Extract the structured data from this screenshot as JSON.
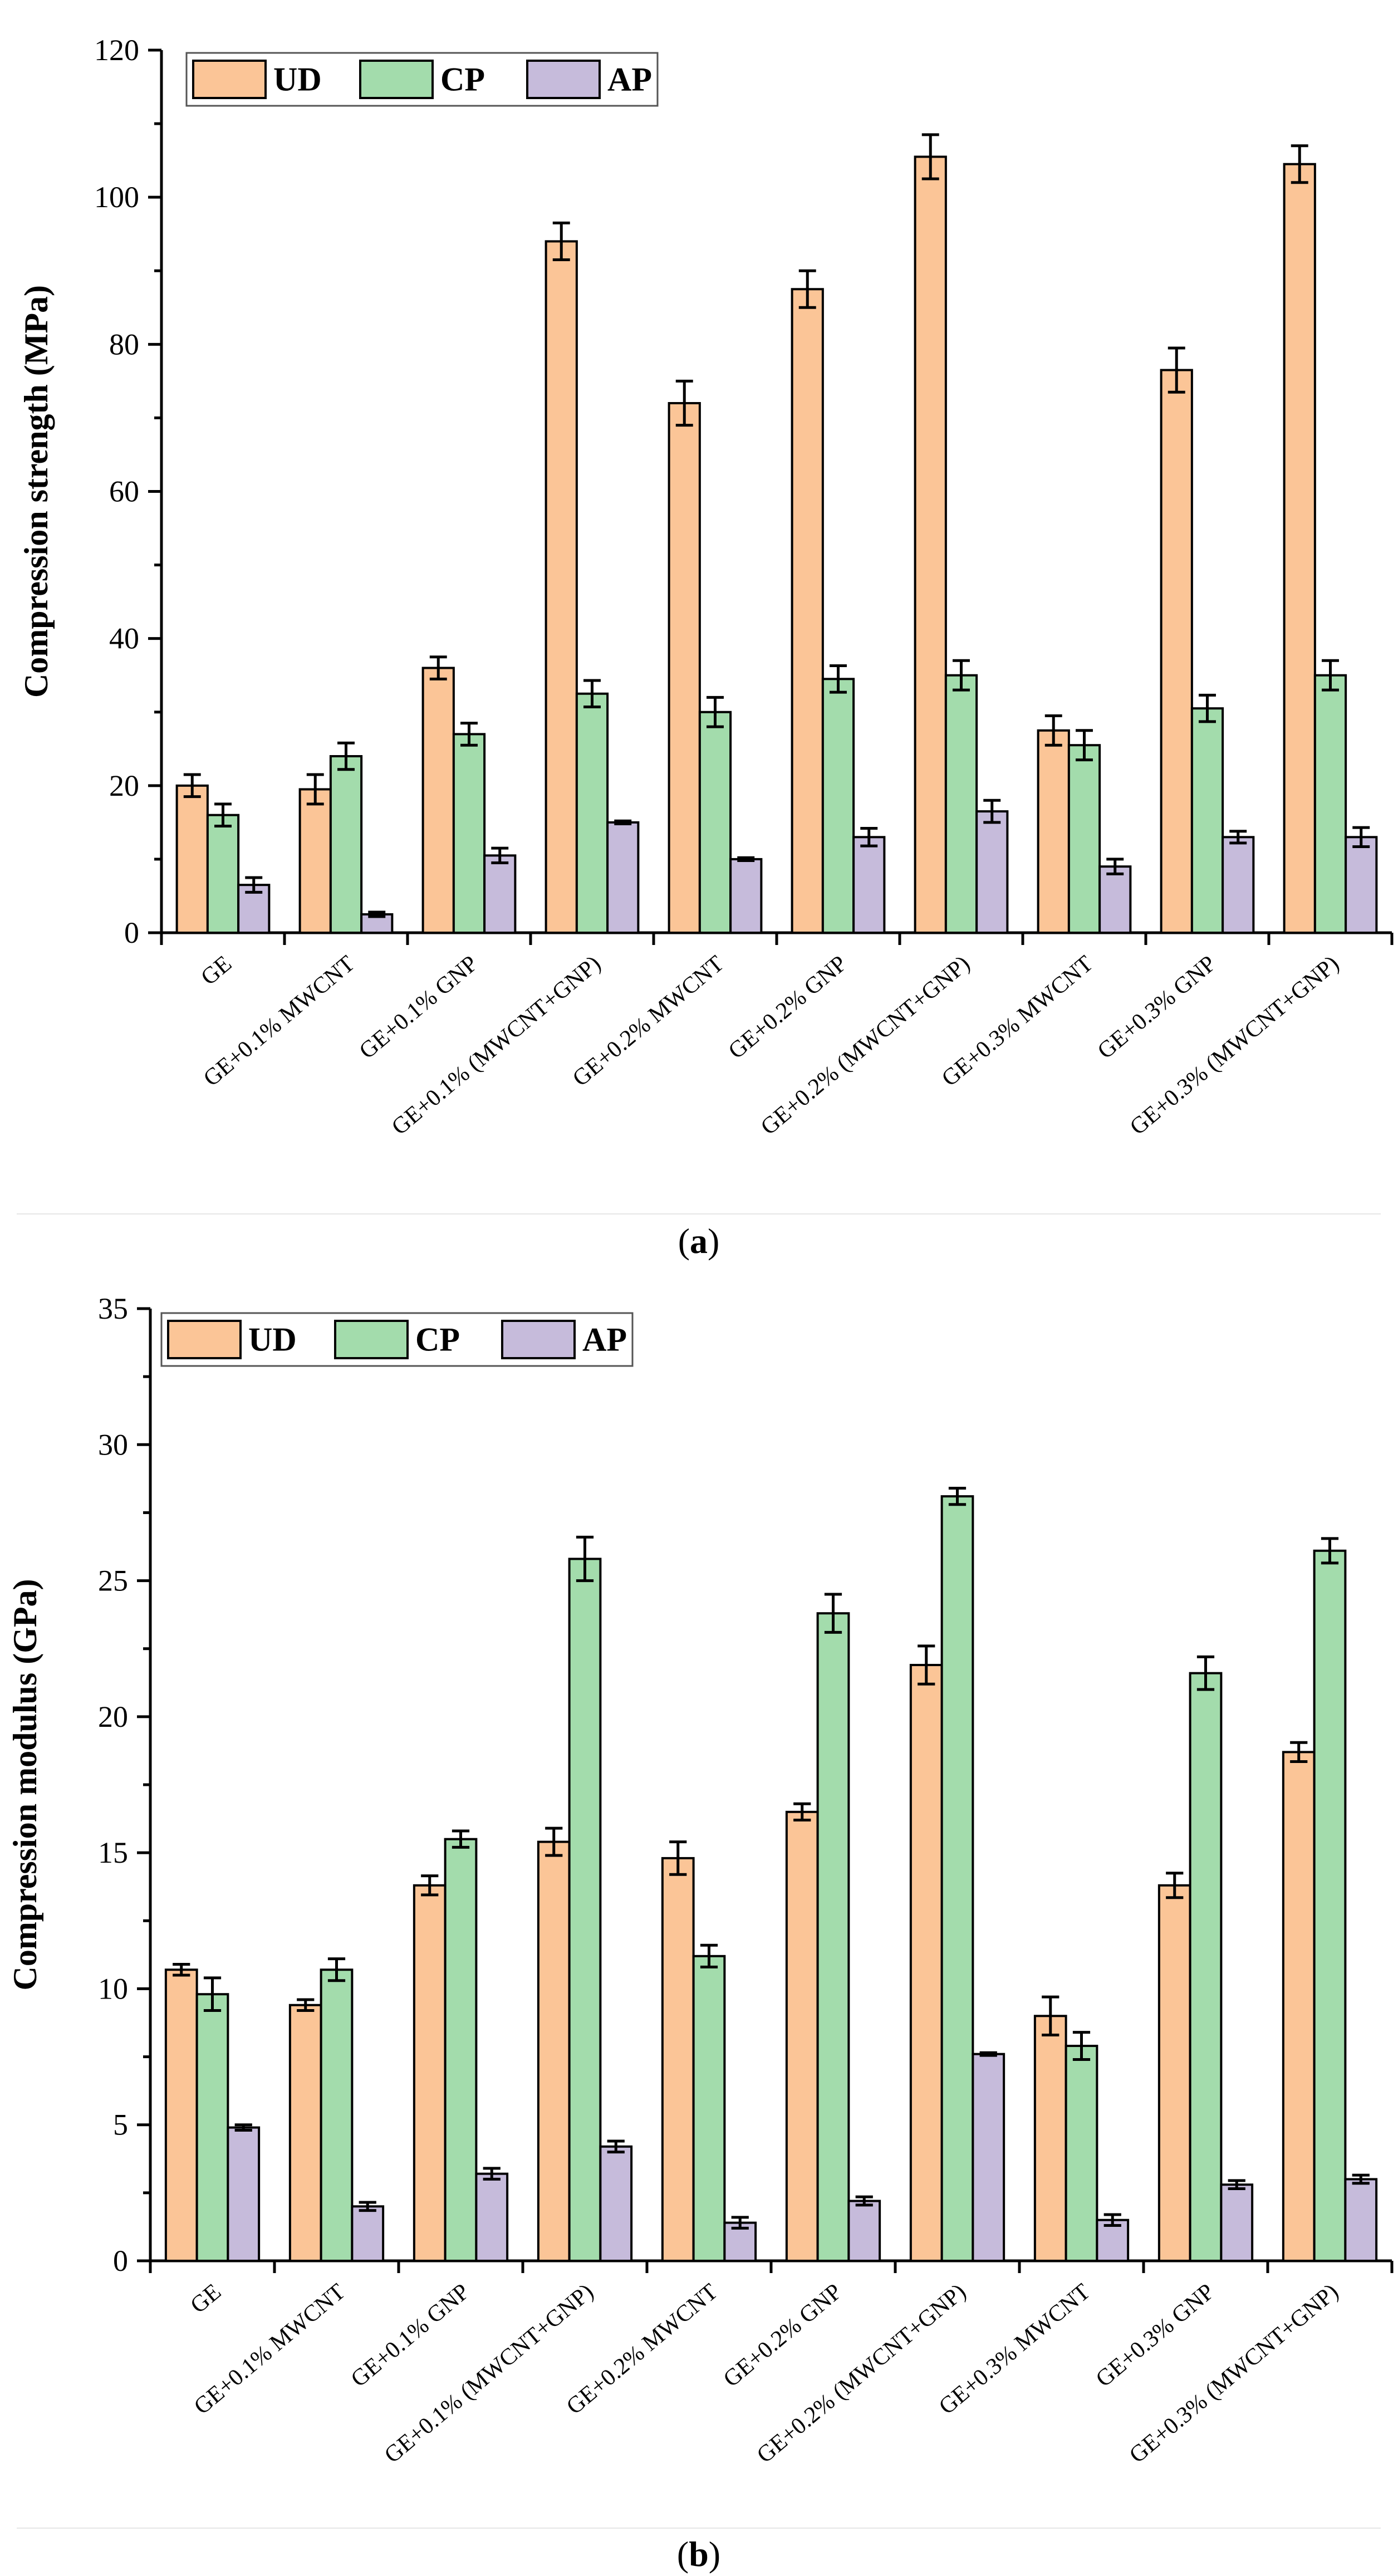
{
  "chart_data": [
    {
      "type": "bar",
      "panel_label_prefix": "(",
      "panel_label": "a",
      "panel_label_suffix": ")",
      "ylabel": "Compression strength (MPa)",
      "xlabel": "",
      "ylim": [
        0,
        120
      ],
      "yticks": [
        0,
        20,
        40,
        60,
        80,
        100,
        120
      ],
      "legend_position": "top-left",
      "categories": [
        "GE",
        "GE+0.1% MWCNT",
        "GE+0.1% GNP",
        "GE+0.1% (MWCNT+GNP)",
        "GE+0.2% MWCNT",
        "GE+0.2% GNP",
        "GE+0.2% (MWCNT+GNP)",
        "GE+0.3% MWCNT",
        "GE+0.3% GNP",
        "GE+0.3% (MWCNT+GNP)"
      ],
      "series": [
        {
          "name": "UD",
          "color": "#fbc597",
          "values": [
            20,
            19.5,
            36,
            94,
            72,
            87.5,
            105.5,
            27.5,
            76.5,
            104.5
          ],
          "errors": [
            1.5,
            2,
            1.5,
            2.5,
            3,
            2.5,
            3,
            2,
            3,
            2.5
          ]
        },
        {
          "name": "CP",
          "color": "#a3dcac",
          "values": [
            16,
            24,
            27,
            32.5,
            30,
            34.5,
            35,
            25.5,
            30.5,
            35
          ],
          "errors": [
            1.5,
            1.8,
            1.5,
            1.8,
            2,
            1.8,
            2,
            2,
            1.8,
            2
          ]
        },
        {
          "name": "AP",
          "color": "#c6bbdb",
          "values": [
            6.5,
            2.5,
            10.5,
            15,
            10,
            13,
            16.5,
            9,
            13,
            13
          ],
          "errors": [
            1,
            0.3,
            1,
            0.2,
            0.2,
            1.2,
            1.5,
            1,
            0.8,
            1.3
          ]
        }
      ]
    },
    {
      "type": "bar",
      "panel_label_prefix": "(",
      "panel_label": "b",
      "panel_label_suffix": ")",
      "ylabel": "Compression modulus (GPa)",
      "xlabel": "",
      "ylim": [
        0,
        35
      ],
      "yticks": [
        0,
        5,
        10,
        15,
        20,
        25,
        30,
        35
      ],
      "legend_position": "top-left",
      "categories": [
        "GE",
        "GE+0.1% MWCNT",
        "GE+0.1% GNP",
        "GE+0.1% (MWCNT+GNP)",
        "GE+0.2% MWCNT",
        "GE+0.2% GNP",
        "GE+0.2% (MWCNT+GNP)",
        "GE+0.3% MWCNT",
        "GE+0.3% GNP",
        "GE+0.3% (MWCNT+GNP)"
      ],
      "series": [
        {
          "name": "UD",
          "color": "#fbc597",
          "values": [
            10.7,
            9.4,
            13.8,
            15.4,
            14.8,
            16.5,
            21.9,
            9,
            13.8,
            18.7
          ],
          "errors": [
            0.2,
            0.2,
            0.35,
            0.5,
            0.6,
            0.3,
            0.7,
            0.7,
            0.45,
            0.35
          ]
        },
        {
          "name": "CP",
          "color": "#a3dcac",
          "values": [
            9.8,
            10.7,
            15.5,
            25.8,
            11.2,
            23.8,
            28.1,
            7.9,
            21.6,
            26.1
          ],
          "errors": [
            0.6,
            0.4,
            0.3,
            0.8,
            0.4,
            0.7,
            0.3,
            0.5,
            0.6,
            0.45
          ]
        },
        {
          "name": "AP",
          "color": "#c6bbdb",
          "values": [
            4.9,
            2,
            3.2,
            4.2,
            1.4,
            2.2,
            7.6,
            1.5,
            2.8,
            3
          ],
          "errors": [
            0.1,
            0.15,
            0.2,
            0.2,
            0.2,
            0.15,
            0.05,
            0.2,
            0.15,
            0.15
          ]
        }
      ]
    }
  ]
}
